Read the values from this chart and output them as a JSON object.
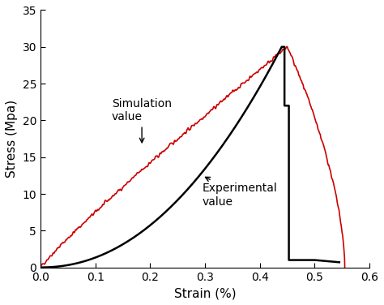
{
  "title": "",
  "xlabel": "Strain (%)",
  "ylabel": "Stress (Mpa)",
  "xlim": [
    0.0,
    0.6
  ],
  "ylim": [
    0.0,
    35
  ],
  "xticks": [
    0.0,
    0.1,
    0.2,
    0.3,
    0.4,
    0.5,
    0.6
  ],
  "yticks": [
    0,
    5,
    10,
    15,
    20,
    25,
    30,
    35
  ],
  "simulation_color": "#cc0000",
  "experimental_color": "#000000",
  "simulation_label": "Simulation\nvalue",
  "experimental_label": "Experimental\nvalue",
  "bg_color": "#ffffff",
  "linewidth_sim": 1.2,
  "linewidth_exp": 1.8,
  "noise_amplitude": 0.25,
  "annotation_fontsize": 10
}
